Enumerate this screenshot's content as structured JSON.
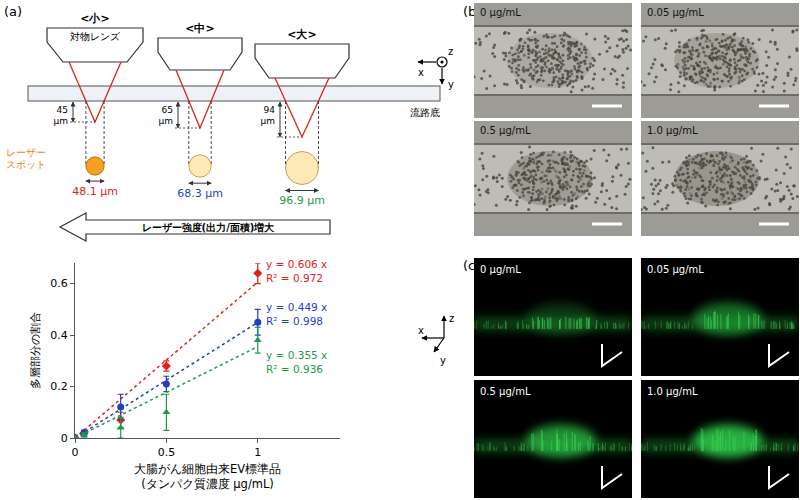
{
  "panel_labels": [
    "(a)",
    "(b)",
    "(c)"
  ],
  "diagram": {
    "objective_label": "対物レンズ",
    "bottom_label": "流路底",
    "spot_label": "レーザー\nスポット",
    "arrow_label": "レーザー強度(出力/面積)増大",
    "lenses": [
      {
        "name": "<小>",
        "depth": "45\nμm",
        "spot": "48.1 μm",
        "color": "#e3211c"
      },
      {
        "name": "<中>",
        "depth": "65\nμm",
        "spot": "68.3 μm",
        "color": "#1f3fbf"
      },
      {
        "name": "<大>",
        "depth": "94\nμm",
        "spot": "96.9 μm",
        "color": "#1e9a4e"
      }
    ]
  },
  "micrographs": {
    "axes": [
      "x",
      "y",
      "z"
    ],
    "concentrations": [
      "0 μg/mL",
      "0.05 μg/mL",
      "0.5 μg/mL",
      "1.0 μg/mL"
    ]
  },
  "chart_data": {
    "type": "scatter",
    "x_label": "大腸がん細胞由来EV標準品\n(タンパク質濃度 μg/mL)",
    "y_label": "多層部分の割合",
    "x": [
      0,
      0.05,
      0.25,
      0.5,
      1
    ],
    "xlim": [
      0,
      1.45
    ],
    "xticks": [
      0,
      0.5,
      1
    ],
    "ylim": [
      0,
      0.68
    ],
    "yticks": [
      0,
      0.2,
      0.4,
      0.6
    ],
    "grid": false,
    "series": [
      {
        "color": "#e3211c",
        "marker": "diamond",
        "values": [
          0,
          0.02,
          0.07,
          0.28,
          0.64
        ],
        "errors": [
          0.01,
          0.01,
          0.03,
          0.02,
          0.04
        ],
        "fit": {
          "slope": 0.606,
          "x": [
            0,
            1
          ],
          "equation": "y = 0.606 x",
          "r2": "R² = 0.972"
        },
        "line_style": "dot"
      },
      {
        "color": "#1f3fbf",
        "marker": "circle",
        "values": [
          0,
          0.02,
          0.12,
          0.21,
          0.45
        ],
        "errors": [
          0.01,
          0.01,
          0.05,
          0.03,
          0.05
        ],
        "fit": {
          "slope": 0.449,
          "x": [
            0,
            1
          ],
          "equation": "y = 0.449 x",
          "r2": "R² = 0.998"
        },
        "line_style": "dot"
      },
      {
        "color": "#1e9a4e",
        "marker": "triangle",
        "values": [
          0,
          0.01,
          0.04,
          0.1,
          0.38
        ],
        "errors": [
          0.005,
          0.01,
          0.04,
          0.07,
          0.05
        ],
        "fit": {
          "slope": 0.355,
          "x": [
            0,
            1
          ],
          "equation": "y = 0.355 x",
          "r2": "R² = 0.936"
        },
        "line_style": "dot"
      }
    ]
  }
}
